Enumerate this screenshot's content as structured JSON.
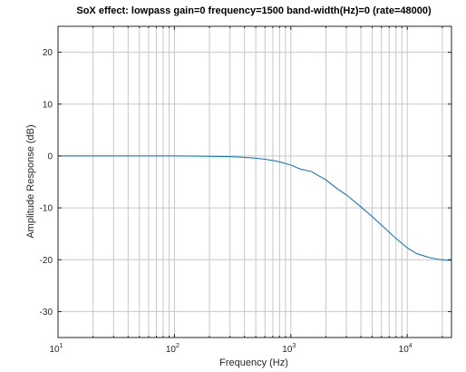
{
  "chart_data": {
    "type": "line",
    "title": "SoX effect: lowpass gain=0 frequency=1500 band-width(Hz)=0 (rate=48000)",
    "xlabel": "Frequency (Hz)",
    "ylabel": "Amplitude Response (dB)",
    "xscale": "log",
    "xlim": [
      10,
      24000
    ],
    "ylim": [
      -35,
      25
    ],
    "grid": "x-minor-and-major vertical, y-major horizontal",
    "x_ticks": [
      {
        "base": "10",
        "exp": "1",
        "value": 10
      },
      {
        "base": "10",
        "exp": "2",
        "value": 100
      },
      {
        "base": "10",
        "exp": "3",
        "value": 1000
      },
      {
        "base": "10",
        "exp": "4",
        "value": 10000
      }
    ],
    "y_ticks": [
      {
        "label": "20",
        "value": 20
      },
      {
        "label": "10",
        "value": 10
      },
      {
        "label": "0",
        "value": 0
      },
      {
        "label": "-10",
        "value": -10
      },
      {
        "label": "-20",
        "value": -20
      },
      {
        "label": "-30",
        "value": -30
      }
    ],
    "series": [
      {
        "color": "#0072bd",
        "x": [
          10,
          50,
          100,
          200,
          300,
          400,
          500,
          600,
          700,
          800,
          1000,
          1200,
          1500,
          2000,
          2500,
          3000,
          4000,
          5000,
          6000,
          7000,
          8000,
          10000,
          12000,
          15000,
          18000,
          20000,
          22000,
          24000
        ],
        "y": [
          0,
          0,
          0,
          -0.05,
          -0.12,
          -0.25,
          -0.42,
          -0.63,
          -0.87,
          -1.13,
          -1.75,
          -2.5,
          -3.0,
          -4.6,
          -6.3,
          -7.5,
          -9.8,
          -11.7,
          -13.3,
          -14.7,
          -15.9,
          -17.7,
          -18.8,
          -19.5,
          -19.9,
          -20.0,
          -20.1,
          -20.1
        ]
      }
    ]
  }
}
